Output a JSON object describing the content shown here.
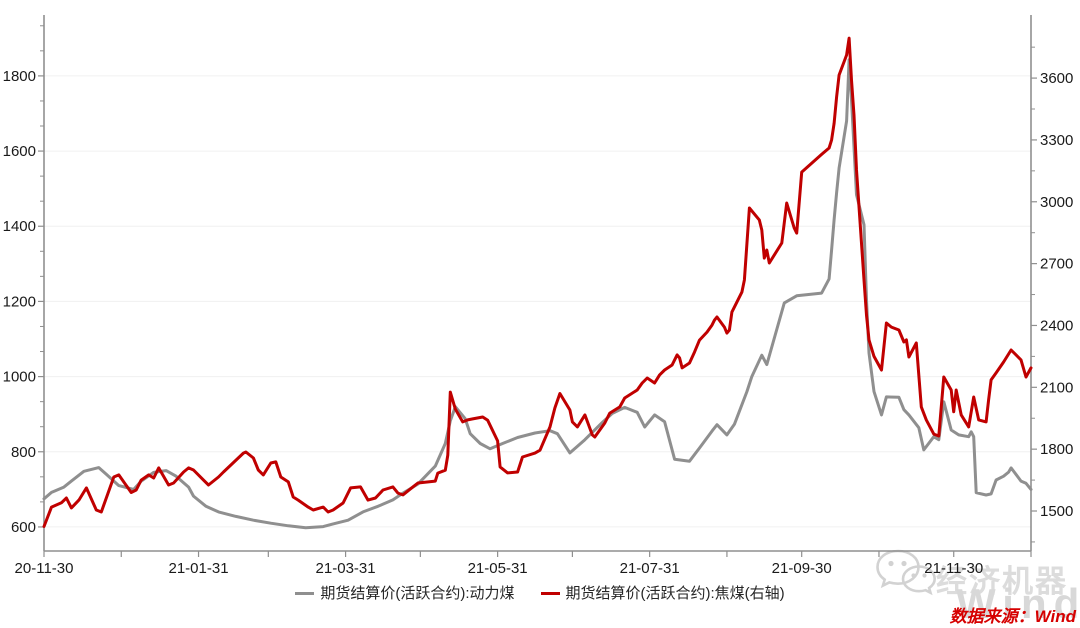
{
  "watermark": {
    "brand_text": "经济机器",
    "wind_text": "Wind"
  },
  "footer": {
    "source_text": "数据来源：Wind",
    "color": "#d60000"
  },
  "chart_data": {
    "type": "line",
    "title": "",
    "grid": "horizontal-only",
    "legend_position": "bottom-center",
    "x_axis": {
      "start": "2020-11-30",
      "end": "2021-12-31",
      "tick_dates": [
        "2020-11-30",
        "2020-12-31",
        "2021-01-31",
        "2021-02-28",
        "2021-03-31",
        "2021-04-30",
        "2021-05-31",
        "2021-06-30",
        "2021-07-31",
        "2021-08-31",
        "2021-09-30",
        "2021-10-31",
        "2021-11-30",
        "2021-12-31"
      ],
      "tick_labels": [
        "20-11-30",
        "",
        "21-01-31",
        "",
        "21-03-31",
        "",
        "21-05-31",
        "",
        "21-07-31",
        "",
        "21-09-30",
        "",
        "21-11-30",
        ""
      ]
    },
    "left_axis": {
      "label_ticks": [
        600,
        800,
        1000,
        1200,
        1400,
        1600,
        1800
      ],
      "min": 536,
      "max": 1962,
      "minor_step": 66.667
    },
    "right_axis": {
      "label_ticks": [
        1500,
        1800,
        2100,
        2400,
        2700,
        3000,
        3300,
        3600
      ],
      "min": 1306,
      "max": 3906,
      "minor_step": 150
    },
    "series": [
      {
        "name": "期货结算价(活跃合约):动力煤",
        "axis": "left",
        "color": "#8f8f8f",
        "points": [
          [
            "2020-11-30",
            675
          ],
          [
            "2020-12-03",
            692
          ],
          [
            "2020-12-08",
            706
          ],
          [
            "2020-12-11",
            722
          ],
          [
            "2020-12-16",
            748
          ],
          [
            "2020-12-22",
            758
          ],
          [
            "2020-12-25",
            740
          ],
          [
            "2020-12-30",
            710
          ],
          [
            "2021-01-05",
            700
          ],
          [
            "2021-01-08",
            722
          ],
          [
            "2021-01-13",
            745
          ],
          [
            "2021-01-18",
            750
          ],
          [
            "2021-01-22",
            735
          ],
          [
            "2021-01-27",
            706
          ],
          [
            "2021-01-29",
            682
          ],
          [
            "2021-02-03",
            655
          ],
          [
            "2021-02-08",
            640
          ],
          [
            "2021-02-15",
            628
          ],
          [
            "2021-02-22",
            618
          ],
          [
            "2021-03-01",
            610
          ],
          [
            "2021-03-08",
            603
          ],
          [
            "2021-03-15",
            598
          ],
          [
            "2021-03-22",
            601
          ],
          [
            "2021-03-26",
            608
          ],
          [
            "2021-04-01",
            618
          ],
          [
            "2021-04-07",
            640
          ],
          [
            "2021-04-13",
            655
          ],
          [
            "2021-04-19",
            672
          ],
          [
            "2021-04-23",
            690
          ],
          [
            "2021-04-29",
            714
          ],
          [
            "2021-05-06",
            762
          ],
          [
            "2021-05-10",
            822
          ],
          [
            "2021-05-12",
            882
          ],
          [
            "2021-05-14",
            920
          ],
          [
            "2021-05-18",
            888
          ],
          [
            "2021-05-20",
            848
          ],
          [
            "2021-05-24",
            822
          ],
          [
            "2021-05-28",
            808
          ],
          [
            "2021-06-02",
            822
          ],
          [
            "2021-06-08",
            838
          ],
          [
            "2021-06-15",
            850
          ],
          [
            "2021-06-21",
            856
          ],
          [
            "2021-06-24",
            848
          ],
          [
            "2021-06-29",
            797
          ],
          [
            "2021-07-05",
            832
          ],
          [
            "2021-07-12",
            878
          ],
          [
            "2021-07-16",
            902
          ],
          [
            "2021-07-21",
            918
          ],
          [
            "2021-07-26",
            905
          ],
          [
            "2021-07-29",
            866
          ],
          [
            "2021-08-02",
            898
          ],
          [
            "2021-08-06",
            880
          ],
          [
            "2021-08-10",
            780
          ],
          [
            "2021-08-16",
            775
          ],
          [
            "2021-08-20",
            810
          ],
          [
            "2021-08-25",
            855
          ],
          [
            "2021-08-27",
            872
          ],
          [
            "2021-08-31",
            845
          ],
          [
            "2021-09-03",
            873
          ],
          [
            "2021-09-08",
            960
          ],
          [
            "2021-09-10",
            1000
          ],
          [
            "2021-09-14",
            1057
          ],
          [
            "2021-09-16",
            1032
          ],
          [
            "2021-09-23",
            1196
          ],
          [
            "2021-09-28",
            1215
          ],
          [
            "2021-10-08",
            1222
          ],
          [
            "2021-10-11",
            1260
          ],
          [
            "2021-10-12",
            1337
          ],
          [
            "2021-10-13",
            1417
          ],
          [
            "2021-10-14",
            1489
          ],
          [
            "2021-10-15",
            1555
          ],
          [
            "2021-10-18",
            1680
          ],
          [
            "2021-10-19",
            1843
          ],
          [
            "2021-10-20",
            1736
          ],
          [
            "2021-10-22",
            1484
          ],
          [
            "2021-10-25",
            1404
          ],
          [
            "2021-10-26",
            1204
          ],
          [
            "2021-10-27",
            1063
          ],
          [
            "2021-10-29",
            960
          ],
          [
            "2021-11-01",
            898
          ],
          [
            "2021-11-03",
            946
          ],
          [
            "2021-11-08",
            945
          ],
          [
            "2021-11-10",
            912
          ],
          [
            "2021-11-12",
            898
          ],
          [
            "2021-11-16",
            864
          ],
          [
            "2021-11-18",
            805
          ],
          [
            "2021-11-22",
            840
          ],
          [
            "2021-11-24",
            832
          ],
          [
            "2021-11-26",
            933
          ],
          [
            "2021-11-29",
            858
          ],
          [
            "2021-12-02",
            845
          ],
          [
            "2021-12-06",
            840
          ],
          [
            "2021-12-07",
            853
          ],
          [
            "2021-12-08",
            840
          ],
          [
            "2021-12-09",
            691
          ],
          [
            "2021-12-13",
            685
          ],
          [
            "2021-12-15",
            688
          ],
          [
            "2021-12-17",
            725
          ],
          [
            "2021-12-20",
            735
          ],
          [
            "2021-12-22",
            746
          ],
          [
            "2021-12-23",
            757
          ],
          [
            "2021-12-27",
            722
          ],
          [
            "2021-12-29",
            716
          ],
          [
            "2021-12-31",
            700
          ]
        ]
      },
      {
        "name": "期货结算价(活跃合约):焦煤(右轴)",
        "axis": "right",
        "color": "#c00000",
        "points": [
          [
            "2020-11-30",
            1425
          ],
          [
            "2020-12-03",
            1519
          ],
          [
            "2020-12-07",
            1540
          ],
          [
            "2020-12-09",
            1563
          ],
          [
            "2020-12-11",
            1515
          ],
          [
            "2020-12-14",
            1553
          ],
          [
            "2020-12-17",
            1612
          ],
          [
            "2020-12-21",
            1505
          ],
          [
            "2020-12-23",
            1495
          ],
          [
            "2020-12-28",
            1665
          ],
          [
            "2020-12-30",
            1675
          ],
          [
            "2021-01-04",
            1590
          ],
          [
            "2021-01-06",
            1602
          ],
          [
            "2021-01-08",
            1650
          ],
          [
            "2021-01-11",
            1675
          ],
          [
            "2021-01-13",
            1660
          ],
          [
            "2021-01-15",
            1709
          ],
          [
            "2021-01-19",
            1626
          ],
          [
            "2021-01-21",
            1636
          ],
          [
            "2021-01-25",
            1689
          ],
          [
            "2021-01-27",
            1709
          ],
          [
            "2021-01-29",
            1699
          ],
          [
            "2021-02-02",
            1650
          ],
          [
            "2021-02-04",
            1626
          ],
          [
            "2021-02-08",
            1665
          ],
          [
            "2021-02-10",
            1689
          ],
          [
            "2021-02-18",
            1781
          ],
          [
            "2021-02-19",
            1786
          ],
          [
            "2021-02-22",
            1757
          ],
          [
            "2021-02-24",
            1699
          ],
          [
            "2021-02-26",
            1675
          ],
          [
            "2021-03-01",
            1733
          ],
          [
            "2021-03-03",
            1738
          ],
          [
            "2021-03-05",
            1665
          ],
          [
            "2021-03-08",
            1641
          ],
          [
            "2021-03-10",
            1568
          ],
          [
            "2021-03-12",
            1553
          ],
          [
            "2021-03-16",
            1519
          ],
          [
            "2021-03-18",
            1505
          ],
          [
            "2021-03-22",
            1519
          ],
          [
            "2021-03-24",
            1495
          ],
          [
            "2021-03-26",
            1505
          ],
          [
            "2021-03-30",
            1539
          ],
          [
            "2021-04-02",
            1612
          ],
          [
            "2021-04-06",
            1617
          ],
          [
            "2021-04-09",
            1553
          ],
          [
            "2021-04-12",
            1563
          ],
          [
            "2021-04-15",
            1602
          ],
          [
            "2021-04-19",
            1617
          ],
          [
            "2021-04-21",
            1587
          ],
          [
            "2021-04-23",
            1578
          ],
          [
            "2021-04-27",
            1617
          ],
          [
            "2021-04-29",
            1636
          ],
          [
            "2021-05-06",
            1645
          ],
          [
            "2021-05-07",
            1684
          ],
          [
            "2021-05-10",
            1698
          ],
          [
            "2021-05-11",
            1771
          ],
          [
            "2021-05-12",
            2077
          ],
          [
            "2021-05-14",
            1995
          ],
          [
            "2021-05-17",
            1932
          ],
          [
            "2021-05-19",
            1942
          ],
          [
            "2021-05-21",
            1947
          ],
          [
            "2021-05-25",
            1956
          ],
          [
            "2021-05-27",
            1940
          ],
          [
            "2021-05-31",
            1840
          ],
          [
            "2021-06-01",
            1714
          ],
          [
            "2021-06-04",
            1685
          ],
          [
            "2021-06-08",
            1689
          ],
          [
            "2021-06-10",
            1762
          ],
          [
            "2021-06-15",
            1781
          ],
          [
            "2021-06-17",
            1795
          ],
          [
            "2021-06-21",
            1908
          ],
          [
            "2021-06-23",
            2000
          ],
          [
            "2021-06-25",
            2070
          ],
          [
            "2021-06-29",
            1990
          ],
          [
            "2021-06-30",
            1932
          ],
          [
            "2021-07-02",
            1908
          ],
          [
            "2021-07-05",
            1966
          ],
          [
            "2021-07-08",
            1869
          ],
          [
            "2021-07-09",
            1859
          ],
          [
            "2021-07-13",
            1927
          ],
          [
            "2021-07-15",
            1975
          ],
          [
            "2021-07-19",
            2005
          ],
          [
            "2021-07-21",
            2048
          ],
          [
            "2021-07-26",
            2087
          ],
          [
            "2021-07-28",
            2121
          ],
          [
            "2021-07-30",
            2145
          ],
          [
            "2021-08-02",
            2121
          ],
          [
            "2021-08-04",
            2160
          ],
          [
            "2021-08-06",
            2184
          ],
          [
            "2021-08-09",
            2208
          ],
          [
            "2021-08-11",
            2257
          ],
          [
            "2021-08-12",
            2242
          ],
          [
            "2021-08-13",
            2194
          ],
          [
            "2021-08-16",
            2218
          ],
          [
            "2021-08-18",
            2271
          ],
          [
            "2021-08-20",
            2329
          ],
          [
            "2021-08-23",
            2368
          ],
          [
            "2021-08-25",
            2402
          ],
          [
            "2021-08-26",
            2426
          ],
          [
            "2021-08-27",
            2441
          ],
          [
            "2021-08-30",
            2392
          ],
          [
            "2021-08-31",
            2363
          ],
          [
            "2021-09-01",
            2378
          ],
          [
            "2021-09-02",
            2465
          ],
          [
            "2021-09-06",
            2562
          ],
          [
            "2021-09-07",
            2621
          ],
          [
            "2021-09-09",
            2970
          ],
          [
            "2021-09-13",
            2912
          ],
          [
            "2021-09-14",
            2863
          ],
          [
            "2021-09-15",
            2727
          ],
          [
            "2021-09-16",
            2766
          ],
          [
            "2021-09-17",
            2703
          ],
          [
            "2021-09-22",
            2800
          ],
          [
            "2021-09-24",
            2994
          ],
          [
            "2021-09-27",
            2873
          ],
          [
            "2021-09-28",
            2848
          ],
          [
            "2021-09-30",
            3144
          ],
          [
            "2021-10-08",
            3230
          ],
          [
            "2021-10-11",
            3261
          ],
          [
            "2021-10-12",
            3300
          ],
          [
            "2021-10-13",
            3380
          ],
          [
            "2021-10-14",
            3508
          ],
          [
            "2021-10-15",
            3615
          ],
          [
            "2021-10-18",
            3712
          ],
          [
            "2021-10-19",
            3794
          ],
          [
            "2021-10-20",
            3590
          ],
          [
            "2021-10-21",
            3420
          ],
          [
            "2021-10-22",
            3154
          ],
          [
            "2021-10-25",
            2621
          ],
          [
            "2021-10-26",
            2450
          ],
          [
            "2021-10-27",
            2330
          ],
          [
            "2021-10-29",
            2250
          ],
          [
            "2021-11-01",
            2184
          ],
          [
            "2021-11-03",
            2412
          ],
          [
            "2021-11-05",
            2392
          ],
          [
            "2021-11-08",
            2378
          ],
          [
            "2021-11-10",
            2320
          ],
          [
            "2021-11-11",
            2330
          ],
          [
            "2021-11-12",
            2247
          ],
          [
            "2021-11-15",
            2315
          ],
          [
            "2021-11-17",
            2005
          ],
          [
            "2021-11-19",
            1942
          ],
          [
            "2021-11-22",
            1873
          ],
          [
            "2021-11-24",
            1864
          ],
          [
            "2021-11-26",
            2150
          ],
          [
            "2021-11-29",
            2087
          ],
          [
            "2021-11-30",
            1981
          ],
          [
            "2021-12-01",
            2087
          ],
          [
            "2021-12-03",
            1966
          ],
          [
            "2021-12-06",
            1908
          ],
          [
            "2021-12-08",
            2053
          ],
          [
            "2021-12-10",
            1942
          ],
          [
            "2021-12-13",
            1932
          ],
          [
            "2021-12-14",
            2039
          ],
          [
            "2021-12-15",
            2136
          ],
          [
            "2021-12-17",
            2170
          ],
          [
            "2021-12-20",
            2223
          ],
          [
            "2021-12-21",
            2242
          ],
          [
            "2021-12-23",
            2281
          ],
          [
            "2021-12-27",
            2233
          ],
          [
            "2021-12-29",
            2150
          ],
          [
            "2021-12-31",
            2194
          ]
        ]
      }
    ]
  }
}
